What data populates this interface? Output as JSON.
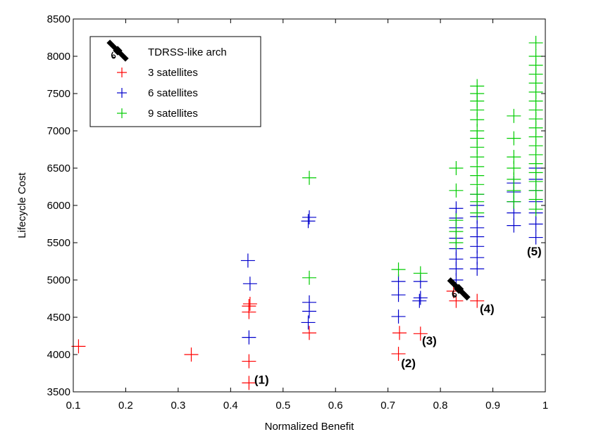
{
  "chart_data": {
    "type": "scatter",
    "title": "",
    "xlabel": "Normalized Benefit",
    "ylabel": "Lifecycle Cost",
    "xlim": [
      0.1,
      1.0
    ],
    "ylim": [
      3500,
      8500
    ],
    "xticks": [
      0.1,
      0.2,
      0.3,
      0.4,
      0.5,
      0.6,
      0.7,
      0.8,
      0.9,
      1.0
    ],
    "xtick_labels": [
      "0.1",
      "0.2",
      "0.3",
      "0.4",
      "0.5",
      "0.6",
      "0.7",
      "0.8",
      "0.9",
      "1"
    ],
    "yticks": [
      3500,
      4000,
      4500,
      5000,
      5500,
      6000,
      6500,
      7000,
      7500,
      8000,
      8500
    ],
    "ytick_labels": [
      "3500",
      "4000",
      "4500",
      "5000",
      "5500",
      "6000",
      "6500",
      "7000",
      "7500",
      "8000",
      "8500"
    ],
    "grid": false,
    "legend_position": "top-left",
    "marker": "plus",
    "series": [
      {
        "name": "3 satellites",
        "color": "#ff0000",
        "points": [
          [
            0.11,
            4110
          ],
          [
            0.325,
            4000
          ],
          [
            0.435,
            3620
          ],
          [
            0.435,
            3910
          ],
          [
            0.435,
            4570
          ],
          [
            0.435,
            4650
          ],
          [
            0.437,
            4680
          ],
          [
            0.55,
            4290
          ],
          [
            0.72,
            4010
          ],
          [
            0.722,
            4290
          ],
          [
            0.762,
            4280
          ],
          [
            0.825,
            4850
          ],
          [
            0.83,
            4720
          ],
          [
            0.87,
            4720
          ]
        ]
      },
      {
        "name": "6 satellites",
        "color": "#0000cc",
        "points": [
          [
            0.435,
            4230
          ],
          [
            0.437,
            4950
          ],
          [
            0.433,
            5260
          ],
          [
            0.548,
            4430
          ],
          [
            0.55,
            4580
          ],
          [
            0.55,
            4700
          ],
          [
            0.548,
            5790
          ],
          [
            0.55,
            5840
          ],
          [
            0.72,
            4510
          ],
          [
            0.72,
            4800
          ],
          [
            0.72,
            4980
          ],
          [
            0.76,
            4720
          ],
          [
            0.762,
            4760
          ],
          [
            0.762,
            4980
          ],
          [
            0.83,
            5000
          ],
          [
            0.83,
            5150
          ],
          [
            0.83,
            5280
          ],
          [
            0.83,
            5420
          ],
          [
            0.83,
            5560
          ],
          [
            0.83,
            5700
          ],
          [
            0.83,
            5830
          ],
          [
            0.83,
            5960
          ],
          [
            0.87,
            5150
          ],
          [
            0.87,
            5300
          ],
          [
            0.87,
            5450
          ],
          [
            0.87,
            5580
          ],
          [
            0.87,
            5700
          ],
          [
            0.87,
            5850
          ],
          [
            0.87,
            6000
          ],
          [
            0.87,
            6150
          ],
          [
            0.94,
            5730
          ],
          [
            0.94,
            5900
          ],
          [
            0.94,
            6050
          ],
          [
            0.94,
            6180
          ],
          [
            0.94,
            6300
          ],
          [
            0.982,
            5570
          ],
          [
            0.982,
            5750
          ],
          [
            0.982,
            5900
          ],
          [
            0.982,
            6050
          ],
          [
            0.982,
            6200
          ],
          [
            0.982,
            6350
          ],
          [
            0.982,
            6500
          ]
        ]
      },
      {
        "name": "9 satellites",
        "color": "#00cc00",
        "points": [
          [
            0.55,
            6370
          ],
          [
            0.55,
            5030
          ],
          [
            0.72,
            5140
          ],
          [
            0.762,
            5090
          ],
          [
            0.83,
            5500
          ],
          [
            0.83,
            5650
          ],
          [
            0.83,
            5800
          ],
          [
            0.83,
            6200
          ],
          [
            0.83,
            6500
          ],
          [
            0.87,
            5900
          ],
          [
            0.87,
            6050
          ],
          [
            0.87,
            6150
          ],
          [
            0.87,
            6280
          ],
          [
            0.87,
            6400
          ],
          [
            0.87,
            6520
          ],
          [
            0.87,
            6650
          ],
          [
            0.87,
            6780
          ],
          [
            0.87,
            6900
          ],
          [
            0.87,
            7000
          ],
          [
            0.87,
            7150
          ],
          [
            0.87,
            7280
          ],
          [
            0.87,
            7400
          ],
          [
            0.87,
            7500
          ],
          [
            0.87,
            7600
          ],
          [
            0.94,
            6050
          ],
          [
            0.94,
            6200
          ],
          [
            0.94,
            6350
          ],
          [
            0.94,
            6500
          ],
          [
            0.94,
            6650
          ],
          [
            0.94,
            6900
          ],
          [
            0.94,
            7200
          ],
          [
            0.982,
            5950
          ],
          [
            0.982,
            6080
          ],
          [
            0.982,
            6200
          ],
          [
            0.982,
            6320
          ],
          [
            0.982,
            6440
          ],
          [
            0.982,
            6560
          ],
          [
            0.982,
            6680
          ],
          [
            0.982,
            6800
          ],
          [
            0.982,
            6920
          ],
          [
            0.982,
            7040
          ],
          [
            0.982,
            7160
          ],
          [
            0.982,
            7280
          ],
          [
            0.982,
            7400
          ],
          [
            0.982,
            7520
          ],
          [
            0.982,
            7640
          ],
          [
            0.982,
            7760
          ],
          [
            0.982,
            7880
          ],
          [
            0.982,
            8000
          ],
          [
            0.982,
            8180
          ]
        ]
      }
    ],
    "tdrss": {
      "name": "TDRSS-like arch",
      "icon": "satellite-icon",
      "point": [
        0.835,
        4880
      ]
    },
    "annotations": [
      {
        "text": "(1)",
        "x": 0.445,
        "y": 3610
      },
      {
        "text": "(2)",
        "x": 0.725,
        "y": 3830
      },
      {
        "text": "(3)",
        "x": 0.765,
        "y": 4130
      },
      {
        "text": "(4)",
        "x": 0.875,
        "y": 4560
      },
      {
        "text": "(5)",
        "x": 0.965,
        "y": 5330
      }
    ]
  }
}
